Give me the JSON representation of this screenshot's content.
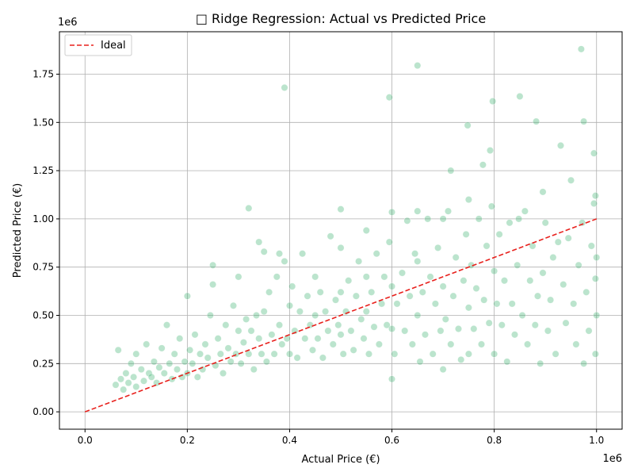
{
  "chart_data": {
    "type": "scatter",
    "title": "□ Ridge Regression: Actual vs Predicted Price",
    "xlabel": "Actual Price (€)",
    "ylabel": "Predicted Price (€)",
    "x_offset_label": "1e6",
    "y_offset_label": "1e6",
    "xlim": [
      -50000,
      1050000
    ],
    "ylim": [
      -90000,
      1970000
    ],
    "x_ticks": [
      0,
      200000,
      400000,
      600000,
      800000,
      1000000
    ],
    "x_tick_labels": [
      "0.0",
      "0.2",
      "0.4",
      "0.6",
      "0.8",
      "1.0"
    ],
    "y_ticks": [
      0,
      250000,
      500000,
      750000,
      1000000,
      1250000,
      1500000,
      1750000
    ],
    "y_tick_labels": [
      "0.00",
      "0.25",
      "0.50",
      "0.75",
      "1.00",
      "1.25",
      "1.50",
      "1.75"
    ],
    "grid": true,
    "legend_position": "top-left",
    "colors": {
      "points": "#3cb371",
      "ideal": "#e8201c",
      "grid": "#b0b0b0"
    },
    "ideal_line": {
      "name": "Ideal",
      "x": [
        0,
        1000000
      ],
      "y": [
        0,
        1000000
      ]
    },
    "series": [
      {
        "points": [
          [
            60000,
            140000
          ],
          [
            65000,
            320000
          ],
          [
            70000,
            170000
          ],
          [
            75000,
            115000
          ],
          [
            80000,
            200000
          ],
          [
            85000,
            150000
          ],
          [
            90000,
            250000
          ],
          [
            95000,
            180000
          ],
          [
            100000,
            130000
          ],
          [
            100000,
            300000
          ],
          [
            110000,
            220000
          ],
          [
            115000,
            160000
          ],
          [
            120000,
            350000
          ],
          [
            125000,
            200000
          ],
          [
            130000,
            180000
          ],
          [
            135000,
            260000
          ],
          [
            140000,
            150000
          ],
          [
            145000,
            230000
          ],
          [
            150000,
            330000
          ],
          [
            155000,
            200000
          ],
          [
            160000,
            450000
          ],
          [
            165000,
            250000
          ],
          [
            170000,
            170000
          ],
          [
            175000,
            300000
          ],
          [
            180000,
            220000
          ],
          [
            185000,
            380000
          ],
          [
            190000,
            180000
          ],
          [
            195000,
            260000
          ],
          [
            200000,
            600000
          ],
          [
            200000,
            200000
          ],
          [
            205000,
            320000
          ],
          [
            210000,
            250000
          ],
          [
            215000,
            400000
          ],
          [
            220000,
            180000
          ],
          [
            225000,
            300000
          ],
          [
            230000,
            220000
          ],
          [
            235000,
            350000
          ],
          [
            240000,
            280000
          ],
          [
            245000,
            500000
          ],
          [
            250000,
            760000
          ],
          [
            250000,
            660000
          ],
          [
            255000,
            240000
          ],
          [
            260000,
            380000
          ],
          [
            265000,
            300000
          ],
          [
            270000,
            200000
          ],
          [
            275000,
            450000
          ],
          [
            280000,
            330000
          ],
          [
            285000,
            260000
          ],
          [
            290000,
            550000
          ],
          [
            295000,
            300000
          ],
          [
            300000,
            700000
          ],
          [
            300000,
            420000
          ],
          [
            305000,
            250000
          ],
          [
            310000,
            360000
          ],
          [
            315000,
            480000
          ],
          [
            320000,
            1055000
          ],
          [
            320000,
            300000
          ],
          [
            325000,
            420000
          ],
          [
            330000,
            220000
          ],
          [
            335000,
            500000
          ],
          [
            340000,
            880000
          ],
          [
            340000,
            380000
          ],
          [
            345000,
            300000
          ],
          [
            350000,
            830000
          ],
          [
            350000,
            520000
          ],
          [
            355000,
            260000
          ],
          [
            360000,
            620000
          ],
          [
            365000,
            400000
          ],
          [
            370000,
            300000
          ],
          [
            375000,
            700000
          ],
          [
            380000,
            820000
          ],
          [
            380000,
            450000
          ],
          [
            385000,
            350000
          ],
          [
            390000,
            1680000
          ],
          [
            390000,
            780000
          ],
          [
            395000,
            380000
          ],
          [
            400000,
            550000
          ],
          [
            400000,
            300000
          ],
          [
            405000,
            650000
          ],
          [
            410000,
            420000
          ],
          [
            415000,
            280000
          ],
          [
            420000,
            520000
          ],
          [
            425000,
            820000
          ],
          [
            430000,
            380000
          ],
          [
            435000,
            600000
          ],
          [
            440000,
            450000
          ],
          [
            445000,
            320000
          ],
          [
            450000,
            700000
          ],
          [
            450000,
            500000
          ],
          [
            455000,
            380000
          ],
          [
            460000,
            620000
          ],
          [
            465000,
            280000
          ],
          [
            470000,
            520000
          ],
          [
            475000,
            420000
          ],
          [
            480000,
            910000
          ],
          [
            485000,
            350000
          ],
          [
            490000,
            580000
          ],
          [
            495000,
            450000
          ],
          [
            500000,
            1050000
          ],
          [
            500000,
            850000
          ],
          [
            500000,
            620000
          ],
          [
            500000,
            400000
          ],
          [
            505000,
            300000
          ],
          [
            510000,
            520000
          ],
          [
            515000,
            680000
          ],
          [
            520000,
            420000
          ],
          [
            525000,
            320000
          ],
          [
            530000,
            600000
          ],
          [
            535000,
            780000
          ],
          [
            540000,
            480000
          ],
          [
            545000,
            380000
          ],
          [
            550000,
            940000
          ],
          [
            550000,
            700000
          ],
          [
            550000,
            520000
          ],
          [
            555000,
            300000
          ],
          [
            560000,
            620000
          ],
          [
            565000,
            440000
          ],
          [
            570000,
            820000
          ],
          [
            575000,
            350000
          ],
          [
            580000,
            560000
          ],
          [
            585000,
            700000
          ],
          [
            590000,
            450000
          ],
          [
            595000,
            1630000
          ],
          [
            595000,
            880000
          ],
          [
            600000,
            1035000
          ],
          [
            600000,
            650000
          ],
          [
            600000,
            430000
          ],
          [
            600000,
            170000
          ],
          [
            605000,
            300000
          ],
          [
            610000,
            560000
          ],
          [
            620000,
            720000
          ],
          [
            625000,
            420000
          ],
          [
            630000,
            990000
          ],
          [
            635000,
            600000
          ],
          [
            640000,
            350000
          ],
          [
            645000,
            820000
          ],
          [
            650000,
            1795000
          ],
          [
            650000,
            1040000
          ],
          [
            650000,
            780000
          ],
          [
            650000,
            500000
          ],
          [
            655000,
            260000
          ],
          [
            660000,
            620000
          ],
          [
            665000,
            400000
          ],
          [
            670000,
            1000000
          ],
          [
            675000,
            700000
          ],
          [
            680000,
            300000
          ],
          [
            685000,
            560000
          ],
          [
            690000,
            850000
          ],
          [
            695000,
            420000
          ],
          [
            700000,
            1000000
          ],
          [
            700000,
            650000
          ],
          [
            700000,
            220000
          ],
          [
            705000,
            480000
          ],
          [
            710000,
            1040000
          ],
          [
            715000,
            1250000
          ],
          [
            715000,
            350000
          ],
          [
            720000,
            600000
          ],
          [
            725000,
            800000
          ],
          [
            730000,
            430000
          ],
          [
            735000,
            270000
          ],
          [
            740000,
            680000
          ],
          [
            745000,
            920000
          ],
          [
            748000,
            1485000
          ],
          [
            750000,
            1100000
          ],
          [
            750000,
            540000
          ],
          [
            750000,
            300000
          ],
          [
            755000,
            760000
          ],
          [
            760000,
            430000
          ],
          [
            765000,
            640000
          ],
          [
            770000,
            1000000
          ],
          [
            775000,
            350000
          ],
          [
            778000,
            1280000
          ],
          [
            780000,
            580000
          ],
          [
            785000,
            860000
          ],
          [
            790000,
            460000
          ],
          [
            792000,
            1355000
          ],
          [
            795000,
            1065000
          ],
          [
            797000,
            1610000
          ],
          [
            800000,
            730000
          ],
          [
            800000,
            300000
          ],
          [
            805000,
            560000
          ],
          [
            810000,
            920000
          ],
          [
            815000,
            450000
          ],
          [
            820000,
            680000
          ],
          [
            825000,
            260000
          ],
          [
            830000,
            980000
          ],
          [
            835000,
            560000
          ],
          [
            840000,
            400000
          ],
          [
            845000,
            760000
          ],
          [
            848000,
            1000000
          ],
          [
            850000,
            1635000
          ],
          [
            855000,
            500000
          ],
          [
            860000,
            1040000
          ],
          [
            865000,
            350000
          ],
          [
            870000,
            680000
          ],
          [
            875000,
            860000
          ],
          [
            880000,
            450000
          ],
          [
            882000,
            1505000
          ],
          [
            885000,
            600000
          ],
          [
            890000,
            250000
          ],
          [
            895000,
            1140000
          ],
          [
            895000,
            720000
          ],
          [
            900000,
            980000
          ],
          [
            905000,
            420000
          ],
          [
            910000,
            580000
          ],
          [
            915000,
            800000
          ],
          [
            920000,
            300000
          ],
          [
            925000,
            880000
          ],
          [
            930000,
            1380000
          ],
          [
            935000,
            660000
          ],
          [
            940000,
            460000
          ],
          [
            945000,
            900000
          ],
          [
            950000,
            1200000
          ],
          [
            955000,
            560000
          ],
          [
            960000,
            350000
          ],
          [
            965000,
            760000
          ],
          [
            970000,
            1880000
          ],
          [
            972000,
            980000
          ],
          [
            975000,
            1505000
          ],
          [
            975000,
            250000
          ],
          [
            980000,
            620000
          ],
          [
            985000,
            420000
          ],
          [
            990000,
            860000
          ],
          [
            995000,
            1340000
          ],
          [
            995000,
            1080000
          ],
          [
            998000,
            1120000
          ],
          [
            998000,
            690000
          ],
          [
            998000,
            300000
          ],
          [
            1000000,
            500000
          ],
          [
            1000000,
            800000
          ]
        ]
      }
    ]
  }
}
